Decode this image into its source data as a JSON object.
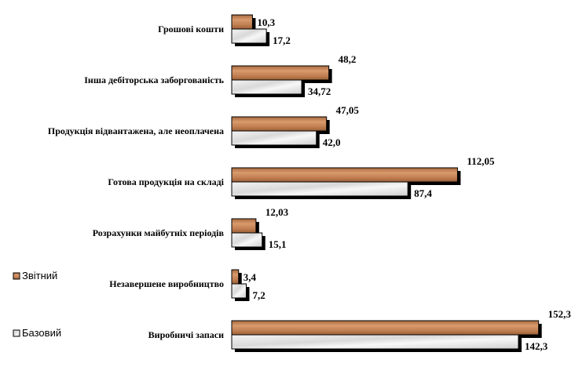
{
  "chart_data": {
    "type": "bar",
    "orientation": "horizontal",
    "categories": [
      "Грошові кошти",
      "Інша дебіторська заборгованість",
      "Продукція відвантажена, але неоплачена",
      "Готова продукція на складі",
      "Розрахунки майбутніх періодів",
      "Незавершене виробництво",
      "Виробничі запаси"
    ],
    "series": [
      {
        "name": "Звітний",
        "values": [
          10.3,
          48.2,
          47.05,
          112.05,
          12.03,
          3.4,
          152.3
        ],
        "labels": [
          "10,3",
          "48,2",
          "47,05",
          "112,05",
          "12,03",
          "3,4",
          "152,3"
        ],
        "color": "#c8875a"
      },
      {
        "name": "Базовий",
        "values": [
          17.2,
          34.72,
          42.0,
          87.4,
          15.1,
          7.2,
          142.3
        ],
        "labels": [
          "17,2",
          "34,72",
          "42,0",
          "87,4",
          "15,1",
          "7,2",
          "142,3"
        ],
        "color": "#e6e6e6"
      }
    ],
    "xlim": [
      0,
      160
    ],
    "grid": false,
    "legend": "left"
  }
}
